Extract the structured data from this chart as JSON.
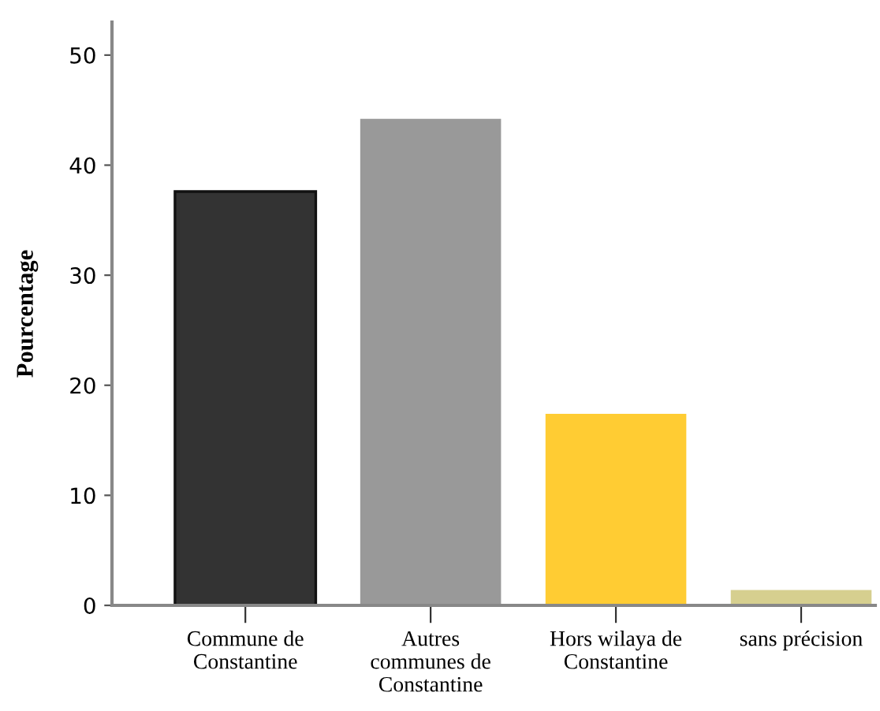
{
  "chart_data": {
    "type": "bar",
    "ylabel": "Pourcentage",
    "categories": [
      "Commune de\nConstantine",
      "Autres\ncommunes de\nConstantine",
      "Hors wilaya de\nConstantine",
      "sans précision"
    ],
    "values": [
      37.6,
      44.2,
      17.4,
      1.4
    ],
    "colors": [
      "#333333",
      "#999999",
      "#ffcc33",
      "#d6cf8f"
    ],
    "ylim": [
      0,
      53
    ],
    "yticks": [
      0,
      10,
      20,
      30,
      40,
      50
    ],
    "grid": false,
    "legend": false
  }
}
